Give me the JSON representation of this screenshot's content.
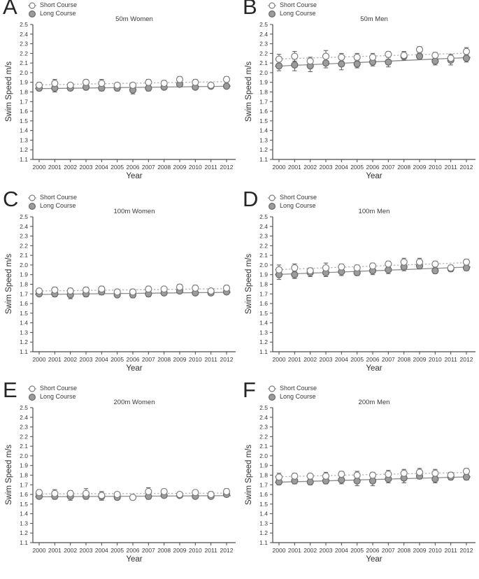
{
  "colors": {
    "axis": "#4a4a4a",
    "tick_text": "#3a3a3a",
    "short_fill": "#ffffff",
    "short_stroke": "#7f7f7f",
    "short_line": "#b5b5b5",
    "long_fill": "#9c9c9c",
    "long_stroke": "#666666",
    "long_line": "#8c8c8c",
    "error_bar": "#5a5a5a"
  },
  "chart_data": [
    {
      "type": "scatter",
      "letter": "A",
      "title": "50m Women",
      "xlabel": "Year",
      "ylabel": "Swim Speed m/s",
      "legend": [
        "Short Course",
        "Long Course"
      ],
      "legend_position": "top-left",
      "grid": false,
      "x": [
        2000,
        2001,
        2002,
        2003,
        2004,
        2005,
        2006,
        2007,
        2008,
        2009,
        2010,
        2011,
        2012
      ],
      "ylim": [
        1.1,
        2.5
      ],
      "ytick_step": 0.1,
      "series": [
        {
          "name": "Short Course",
          "marker": "open-circle",
          "line": "dotted-trend",
          "values": [
            1.87,
            1.89,
            1.87,
            1.9,
            1.89,
            1.87,
            1.87,
            1.9,
            1.89,
            1.93,
            1.9,
            1.87,
            1.93
          ],
          "errors": [
            0.03,
            0.04,
            0.02,
            0.03,
            0.04,
            0.02,
            0.02,
            0.03,
            0.03,
            0.03,
            0.03,
            0.02,
            0.03
          ]
        },
        {
          "name": "Long Course",
          "marker": "filled-circle",
          "line": "solid-trend",
          "values": [
            1.84,
            1.84,
            1.84,
            1.85,
            1.84,
            1.84,
            1.82,
            1.84,
            1.85,
            1.88,
            1.85,
            1.86,
            1.86
          ],
          "errors": [
            0.03,
            0.04,
            0.02,
            0.03,
            0.03,
            0.03,
            0.04,
            0.03,
            0.02,
            0.02,
            0.02,
            0.02,
            0.02
          ]
        }
      ]
    },
    {
      "type": "scatter",
      "letter": "B",
      "title": "50m Men",
      "xlabel": "Year",
      "ylabel": "Swim Speed m/s",
      "legend": [
        "Short Course",
        "Long Course"
      ],
      "legend_position": "top-left",
      "grid": false,
      "x": [
        2000,
        2001,
        2002,
        2003,
        2004,
        2005,
        2006,
        2007,
        2008,
        2009,
        2010,
        2011,
        2012
      ],
      "ylim": [
        1.1,
        2.5
      ],
      "ytick_step": 0.1,
      "series": [
        {
          "name": "Short Course",
          "marker": "open-circle",
          "line": "dotted-trend",
          "values": [
            2.14,
            2.17,
            2.12,
            2.17,
            2.16,
            2.16,
            2.16,
            2.19,
            2.18,
            2.24,
            2.18,
            2.15,
            2.22
          ],
          "errors": [
            0.05,
            0.05,
            0.04,
            0.06,
            0.04,
            0.04,
            0.04,
            0.03,
            0.04,
            0.03,
            0.03,
            0.04,
            0.04
          ]
        },
        {
          "name": "Long Course",
          "marker": "filled-circle",
          "line": "solid-trend",
          "values": [
            2.07,
            2.08,
            2.07,
            2.1,
            2.09,
            2.09,
            2.11,
            2.11,
            2.17,
            2.17,
            2.12,
            2.13,
            2.15
          ],
          "errors": [
            0.05,
            0.06,
            0.06,
            0.05,
            0.06,
            0.04,
            0.04,
            0.05,
            0.04,
            0.03,
            0.04,
            0.05,
            0.04
          ]
        }
      ]
    },
    {
      "type": "scatter",
      "letter": "C",
      "title": "100m Women",
      "xlabel": "Year",
      "ylabel": "Swim Speed m/s",
      "legend": [
        "Short Course",
        "Long Course"
      ],
      "legend_position": "top-left",
      "grid": false,
      "x": [
        2000,
        2001,
        2002,
        2003,
        2004,
        2005,
        2006,
        2007,
        2008,
        2009,
        2010,
        2011,
        2012
      ],
      "ylim": [
        1.1,
        2.5
      ],
      "ytick_step": 0.1,
      "series": [
        {
          "name": "Short Course",
          "marker": "open-circle",
          "line": "dotted-trend",
          "values": [
            1.73,
            1.74,
            1.73,
            1.74,
            1.75,
            1.72,
            1.72,
            1.75,
            1.75,
            1.77,
            1.76,
            1.73,
            1.76
          ],
          "errors": [
            0.02,
            0.03,
            0.03,
            0.03,
            0.03,
            0.02,
            0.03,
            0.03,
            0.02,
            0.03,
            0.03,
            0.02,
            0.03
          ]
        },
        {
          "name": "Long Course",
          "marker": "filled-circle",
          "line": "solid-trend",
          "values": [
            1.7,
            1.7,
            1.69,
            1.7,
            1.72,
            1.69,
            1.69,
            1.7,
            1.71,
            1.73,
            1.71,
            1.71,
            1.72
          ],
          "errors": [
            0.02,
            0.03,
            0.04,
            0.03,
            0.03,
            0.02,
            0.03,
            0.03,
            0.02,
            0.02,
            0.02,
            0.02,
            0.02
          ]
        }
      ]
    },
    {
      "type": "scatter",
      "letter": "D",
      "title": "100m Men",
      "xlabel": "Year",
      "ylabel": "Swim Speed m/s",
      "legend": [
        "Short Course",
        "Long Course"
      ],
      "legend_position": "top-left",
      "grid": false,
      "x": [
        2000,
        2001,
        2002,
        2003,
        2004,
        2005,
        2006,
        2007,
        2008,
        2009,
        2010,
        2011,
        2012
      ],
      "ylim": [
        1.1,
        2.5
      ],
      "ytick_step": 0.1,
      "series": [
        {
          "name": "Short Course",
          "marker": "open-circle",
          "line": "dotted-trend",
          "values": [
            1.95,
            1.97,
            1.94,
            1.97,
            1.98,
            1.97,
            1.99,
            2.01,
            2.03,
            2.03,
            2.01,
            1.97,
            2.03
          ],
          "errors": [
            0.05,
            0.04,
            0.03,
            0.05,
            0.03,
            0.03,
            0.03,
            0.03,
            0.04,
            0.04,
            0.03,
            0.03,
            0.03
          ]
        },
        {
          "name": "Long Course",
          "marker": "filled-circle",
          "line": "solid-trend",
          "values": [
            1.9,
            1.9,
            1.92,
            1.92,
            1.93,
            1.92,
            1.94,
            1.95,
            1.98,
            1.99,
            1.94,
            1.96,
            1.97
          ],
          "errors": [
            0.05,
            0.04,
            0.04,
            0.04,
            0.04,
            0.03,
            0.04,
            0.04,
            0.04,
            0.03,
            0.03,
            0.03,
            0.03
          ]
        }
      ]
    },
    {
      "type": "scatter",
      "letter": "E",
      "title": "200m Women",
      "xlabel": "Year",
      "ylabel": "Swim Speed m/s",
      "legend": [
        "Short Course",
        "Long Course"
      ],
      "legend_position": "top-left",
      "grid": false,
      "x": [
        2000,
        2001,
        2002,
        2003,
        2004,
        2005,
        2006,
        2007,
        2008,
        2009,
        2010,
        2011,
        2012
      ],
      "ylim": [
        1.1,
        2.5
      ],
      "ytick_step": 0.1,
      "series": [
        {
          "name": "Short Course",
          "marker": "open-circle",
          "line": "dotted-trend",
          "values": [
            1.62,
            1.61,
            1.61,
            1.61,
            1.59,
            1.6,
            1.57,
            1.63,
            1.63,
            1.6,
            1.62,
            1.6,
            1.63
          ],
          "errors": [
            0.03,
            0.04,
            0.03,
            0.05,
            0.04,
            0.02,
            0.02,
            0.04,
            0.02,
            0.02,
            0.02,
            0.03,
            0.03
          ]
        },
        {
          "name": "Long Course",
          "marker": "filled-circle",
          "line": "solid-trend",
          "values": [
            1.58,
            1.58,
            1.58,
            1.58,
            1.58,
            1.57,
            1.57,
            1.58,
            1.59,
            1.59,
            1.58,
            1.58,
            1.6
          ],
          "errors": [
            0.02,
            0.03,
            0.04,
            0.03,
            0.04,
            0.02,
            0.02,
            0.03,
            0.02,
            0.02,
            0.02,
            0.02,
            0.02
          ]
        }
      ]
    },
    {
      "type": "scatter",
      "letter": "F",
      "title": "200m Men",
      "xlabel": "Year",
      "ylabel": "Swim Speed m/s",
      "legend": [
        "Short Course",
        "Long Course"
      ],
      "legend_position": "top-left",
      "grid": false,
      "x": [
        2000,
        2001,
        2002,
        2003,
        2004,
        2005,
        2006,
        2007,
        2008,
        2009,
        2010,
        2011,
        2012
      ],
      "ylim": [
        1.1,
        2.5
      ],
      "ytick_step": 0.1,
      "series": [
        {
          "name": "Short Course",
          "marker": "open-circle",
          "line": "dotted-trend",
          "values": [
            1.78,
            1.79,
            1.79,
            1.79,
            1.81,
            1.8,
            1.8,
            1.81,
            1.82,
            1.83,
            1.82,
            1.8,
            1.84
          ],
          "errors": [
            0.04,
            0.03,
            0.02,
            0.04,
            0.03,
            0.04,
            0.03,
            0.04,
            0.04,
            0.04,
            0.04,
            0.03,
            0.03
          ]
        },
        {
          "name": "Long Course",
          "marker": "filled-circle",
          "line": "solid-trend",
          "values": [
            1.73,
            1.74,
            1.73,
            1.74,
            1.75,
            1.74,
            1.74,
            1.76,
            1.77,
            1.79,
            1.76,
            1.78,
            1.78
          ],
          "errors": [
            0.03,
            0.03,
            0.03,
            0.03,
            0.04,
            0.05,
            0.05,
            0.04,
            0.05,
            0.03,
            0.04,
            0.03,
            0.03
          ]
        }
      ]
    }
  ]
}
